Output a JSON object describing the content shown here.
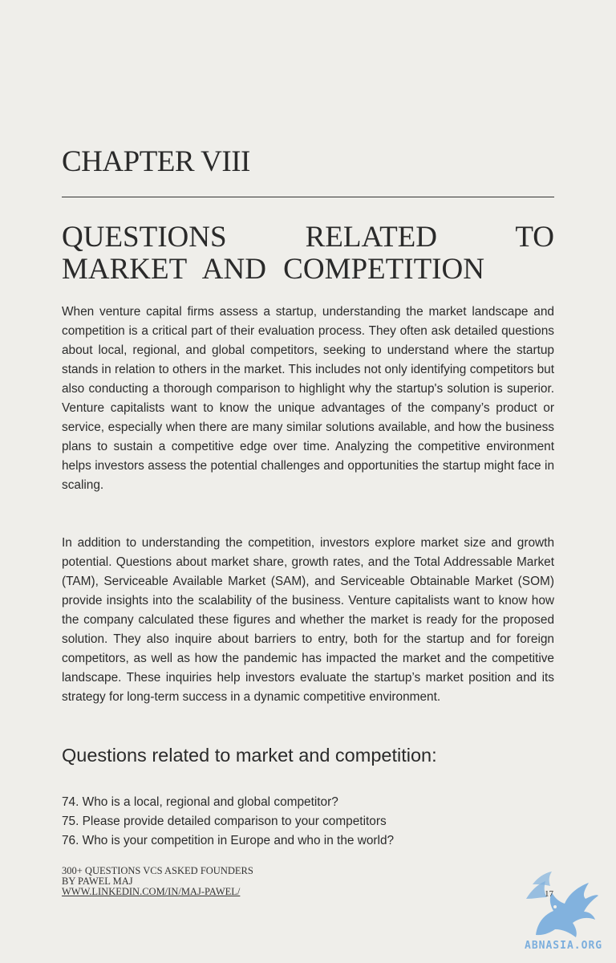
{
  "chapter": {
    "label": "CHAPTER VIII",
    "title": "QUESTIONS RELATED TO MARKET AND COMPETITION"
  },
  "paragraphs": [
    "When venture capital firms assess a startup, understanding the market landscape and competition is a critical part of their evaluation process. They often ask detailed questions about local, regional, and global competitors, seeking to understand where the startup stands in relation to others in the market. This includes not only identifying competitors but also conducting a thorough comparison to highlight why the startup's solution is superior. Venture capitalists want to know the unique advantages of the company’s product or service, especially when there are many similar solutions available, and how the business plans to sustain a competitive edge over time. Analyzing the competitive environment helps investors assess the potential challenges and opportunities the startup might face in scaling.",
    "In addition to understanding the competition, investors explore market size and growth potential. Questions about market share, growth rates, and the Total Addressable Market (TAM), Serviceable Available Market (SAM), and Serviceable Obtainable Market (SOM) provide insights into the scalability of the business. Venture capitalists want to know how the company calculated these figures and whether the market is ready for the proposed solution. They also inquire about barriers to entry, both for the startup and for foreign competitors, as well as how the pandemic has impacted the market and the competitive landscape. These inquiries help investors evaluate the startup’s market position and its strategy for long-term success in a dynamic competitive environment."
  ],
  "questions_heading": "Questions related to market and competition:",
  "questions": [
    "74. Who is a local, regional and global competitor?",
    "75. Please provide detailed comparison to your competitors",
    "76. Who is your competition in Europe and who in the world?"
  ],
  "footer": {
    "line1": "300+ QUESTIONS VCS ASKED FOUNDERS",
    "line2": "BY PAWEL MAJ",
    "link": "WWW.LINKEDIN.COM/IN/MAJ-PAWEL/"
  },
  "page_number": "17",
  "watermark": {
    "text": "ABNASIA.ORG",
    "icon": "griffin-logo-icon",
    "color": "#6fa8dc"
  }
}
